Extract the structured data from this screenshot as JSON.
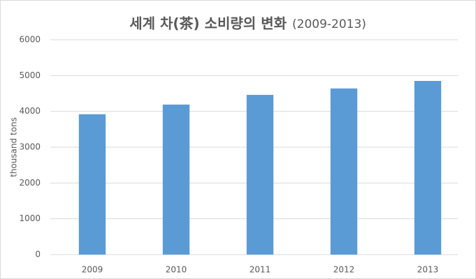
{
  "chart_data": {
    "type": "bar",
    "title": "세계 차(茶) 소비량의 변화",
    "subtitle": "(2009-2013)",
    "y_label": "thousand tons",
    "categories": [
      "2009",
      "2010",
      "2011",
      "2012",
      "2013"
    ],
    "values": [
      3920,
      4190,
      4460,
      4640,
      4850
    ],
    "color": "#5b9bd5",
    "ylim": [
      0,
      6000
    ],
    "yticks": [
      0,
      1000,
      2000,
      3000,
      4000,
      5000,
      6000
    ],
    "grid": true
  }
}
